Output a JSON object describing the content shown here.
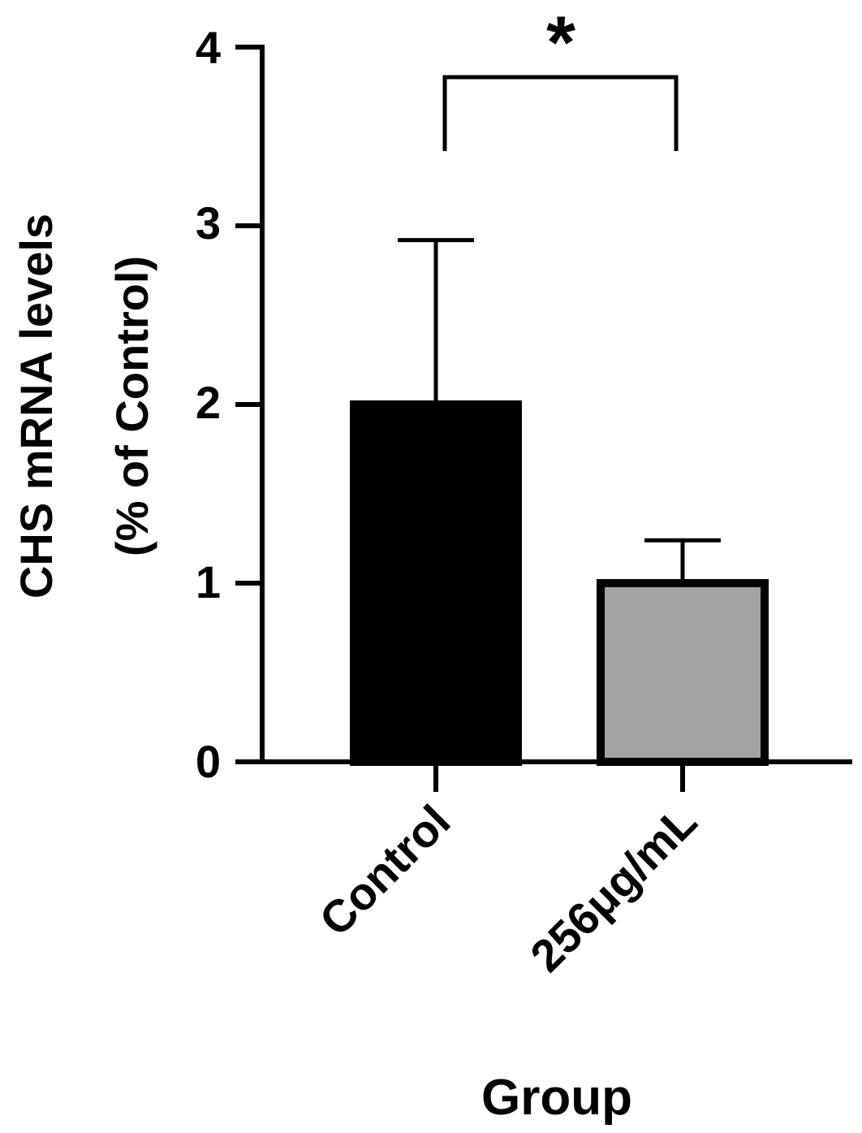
{
  "chart_data": {
    "type": "bar",
    "categories": [
      "Control",
      "256μg/mL"
    ],
    "values": [
      2.0,
      1.0
    ],
    "errors": [
      0.92,
      0.24
    ],
    "colors": [
      "#000000",
      "#a3a3a5"
    ],
    "xlabel": "Group",
    "ylabel_line1": "CHS mRNA levels",
    "ylabel_line2": "(% of Control)",
    "ylim": [
      0,
      4
    ],
    "yticks": [
      "0",
      "1",
      "2",
      "3",
      "4"
    ],
    "significance": {
      "between": [
        "Control",
        "256μg/mL"
      ],
      "marker": "*"
    }
  }
}
